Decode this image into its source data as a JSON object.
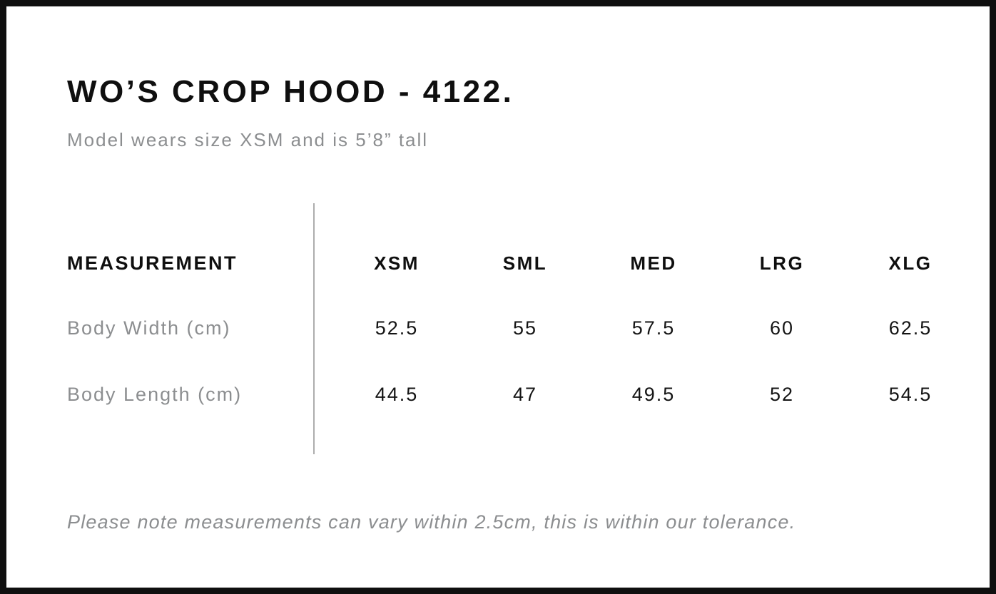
{
  "header": {
    "title": "WO’S CROP HOOD - 4122.",
    "subtitle": "Model wears size XSM and is 5’8” tall"
  },
  "table": {
    "measurement_label": "MEASUREMENT",
    "columns": [
      "XSM",
      "SML",
      "MED",
      "LRG",
      "XLG"
    ],
    "rows": [
      {
        "label": "Body Width (cm)",
        "values": [
          "52.5",
          "55",
          "57.5",
          "60",
          "62.5"
        ]
      },
      {
        "label": "Body Length (cm)",
        "values": [
          "44.5",
          "47",
          "49.5",
          "52",
          "54.5"
        ]
      }
    ]
  },
  "footer": {
    "note": "Please note measurements can vary within 2.5cm, this is within our tolerance."
  },
  "colors": {
    "text": "#0f0f0f",
    "muted_gray": "#8c8e90",
    "divider_gray": "#adadad",
    "page_border": "#0f0f0f",
    "background": "#ffffff"
  }
}
